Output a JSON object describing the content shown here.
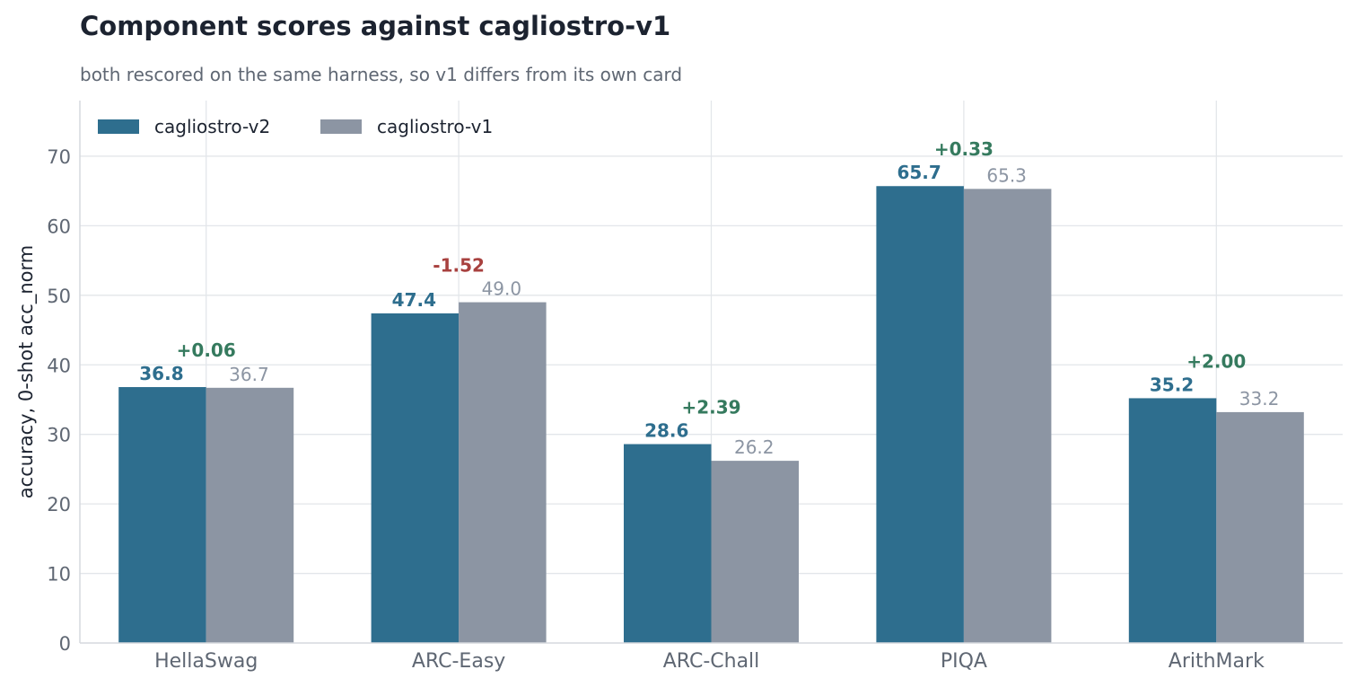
{
  "chart_data": {
    "type": "bar",
    "title": "Component scores against cagliostro-v1",
    "subtitle": "both rescored on the same harness, so v1 differs from its own card",
    "ylabel": "accuracy, 0-shot acc_norm",
    "xlabel": "",
    "ylim": [
      0,
      78
    ],
    "yticks": [
      0,
      10,
      20,
      30,
      40,
      50,
      60,
      70
    ],
    "grid": true,
    "legend_position": "top-left",
    "categories": [
      "HellaSwag",
      "ARC-Easy",
      "ARC-Chall",
      "PIQA",
      "ArithMark"
    ],
    "series": [
      {
        "name": "cagliostro-v2",
        "color": "#2e6e8e",
        "values": [
          36.8,
          47.4,
          28.6,
          65.7,
          35.2
        ],
        "labels": [
          "36.8",
          "47.4",
          "28.6",
          "65.7",
          "35.2"
        ]
      },
      {
        "name": "cagliostro-v1",
        "color": "#8c95a3",
        "values": [
          36.7,
          49.0,
          26.2,
          65.3,
          33.2
        ],
        "labels": [
          "36.7",
          "49.0",
          "26.2",
          "65.3",
          "33.2"
        ]
      }
    ],
    "deltas": [
      {
        "text": "+0.06",
        "color": "#357a5e"
      },
      {
        "text": "-1.52",
        "color": "#a8413f"
      },
      {
        "text": "+2.39",
        "color": "#357a5e"
      },
      {
        "text": "+0.33",
        "color": "#357a5e"
      },
      {
        "text": "+2.00",
        "color": "#357a5e"
      }
    ]
  }
}
